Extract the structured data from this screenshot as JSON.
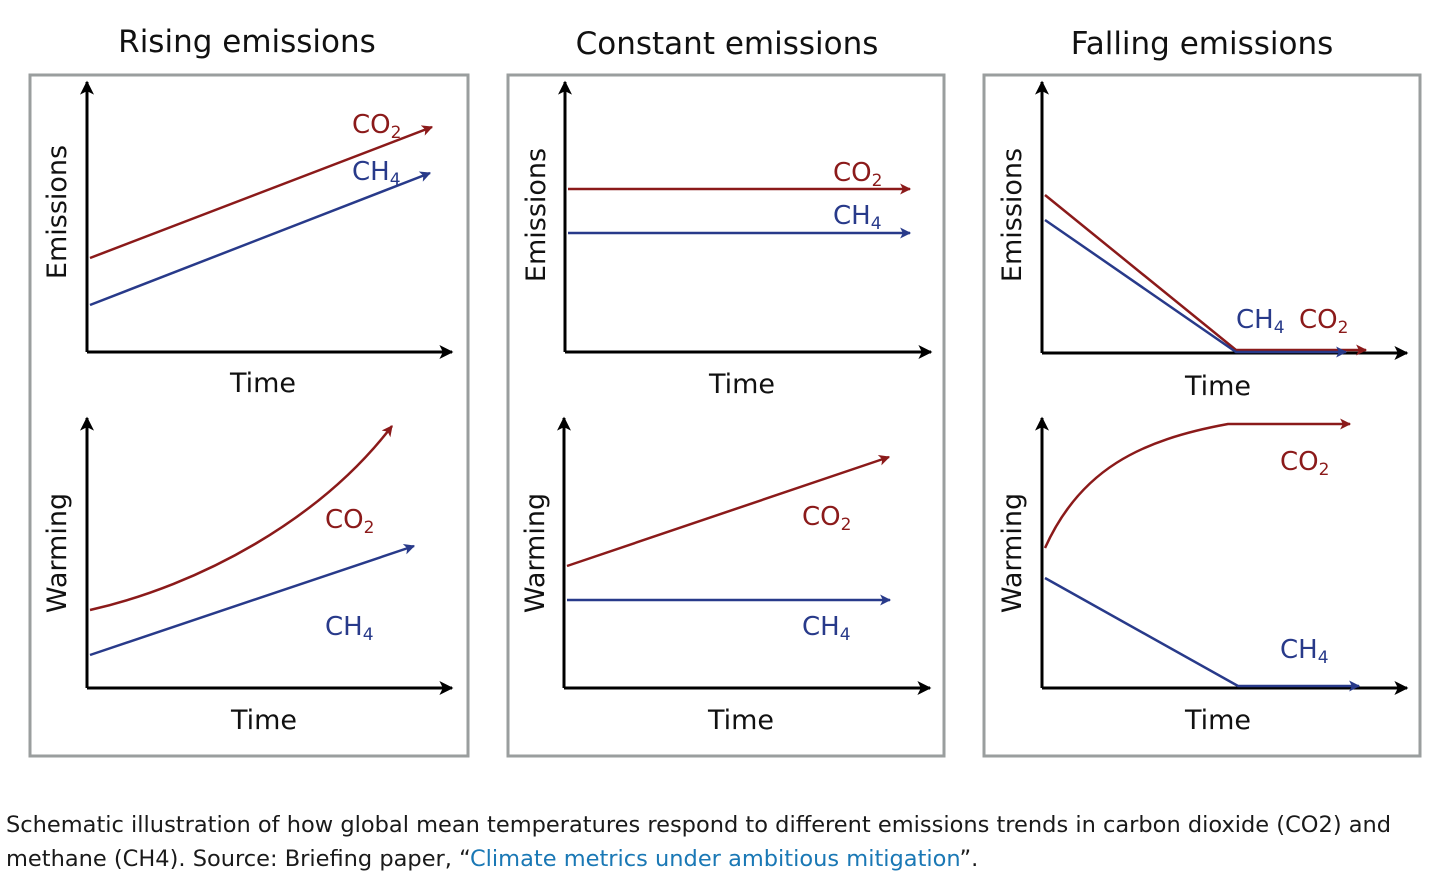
{
  "panels": [
    {
      "title": "Rising emissions",
      "top": {
        "ylabel": "Emissions",
        "xlabel": "Time",
        "co2_label": "CO",
        "co2_sub": "2",
        "ch4_label": "CH",
        "ch4_sub": "4"
      },
      "bottom": {
        "ylabel": "Warming",
        "xlabel": "Time",
        "co2_label": "CO",
        "co2_sub": "2",
        "ch4_label": "CH",
        "ch4_sub": "4"
      }
    },
    {
      "title": "Constant emissions",
      "top": {
        "ylabel": "Emissions",
        "xlabel": "Time",
        "co2_label": "CO",
        "co2_sub": "2",
        "ch4_label": "CH",
        "ch4_sub": "4"
      },
      "bottom": {
        "ylabel": "Warming",
        "xlabel": "Time",
        "co2_label": "CO",
        "co2_sub": "2",
        "ch4_label": "CH",
        "ch4_sub": "4"
      }
    },
    {
      "title": "Falling emissions",
      "top": {
        "ylabel": "Emissions",
        "xlabel": "Time",
        "co2_label": "CO",
        "co2_sub": "2",
        "ch4_label": "CH",
        "ch4_sub": "4"
      },
      "bottom": {
        "ylabel": "Warming",
        "xlabel": "Time",
        "co2_label": "CO",
        "co2_sub": "2",
        "ch4_label": "CH",
        "ch4_sub": "4"
      }
    }
  ],
  "colors": {
    "co2": "#8b1a1a",
    "ch4": "#283a8a",
    "axis": "#000000",
    "frame": "#9a9e9e",
    "link": "#1a78b5"
  },
  "caption": {
    "text_before": "Schematic illustration of how global mean temperatures respond to different emissions trends in carbon dioxide (CO2) and methane (CH4). Source: Briefing paper, “",
    "link_text": "Climate metrics under ambitious mitigation",
    "text_after": "”."
  }
}
